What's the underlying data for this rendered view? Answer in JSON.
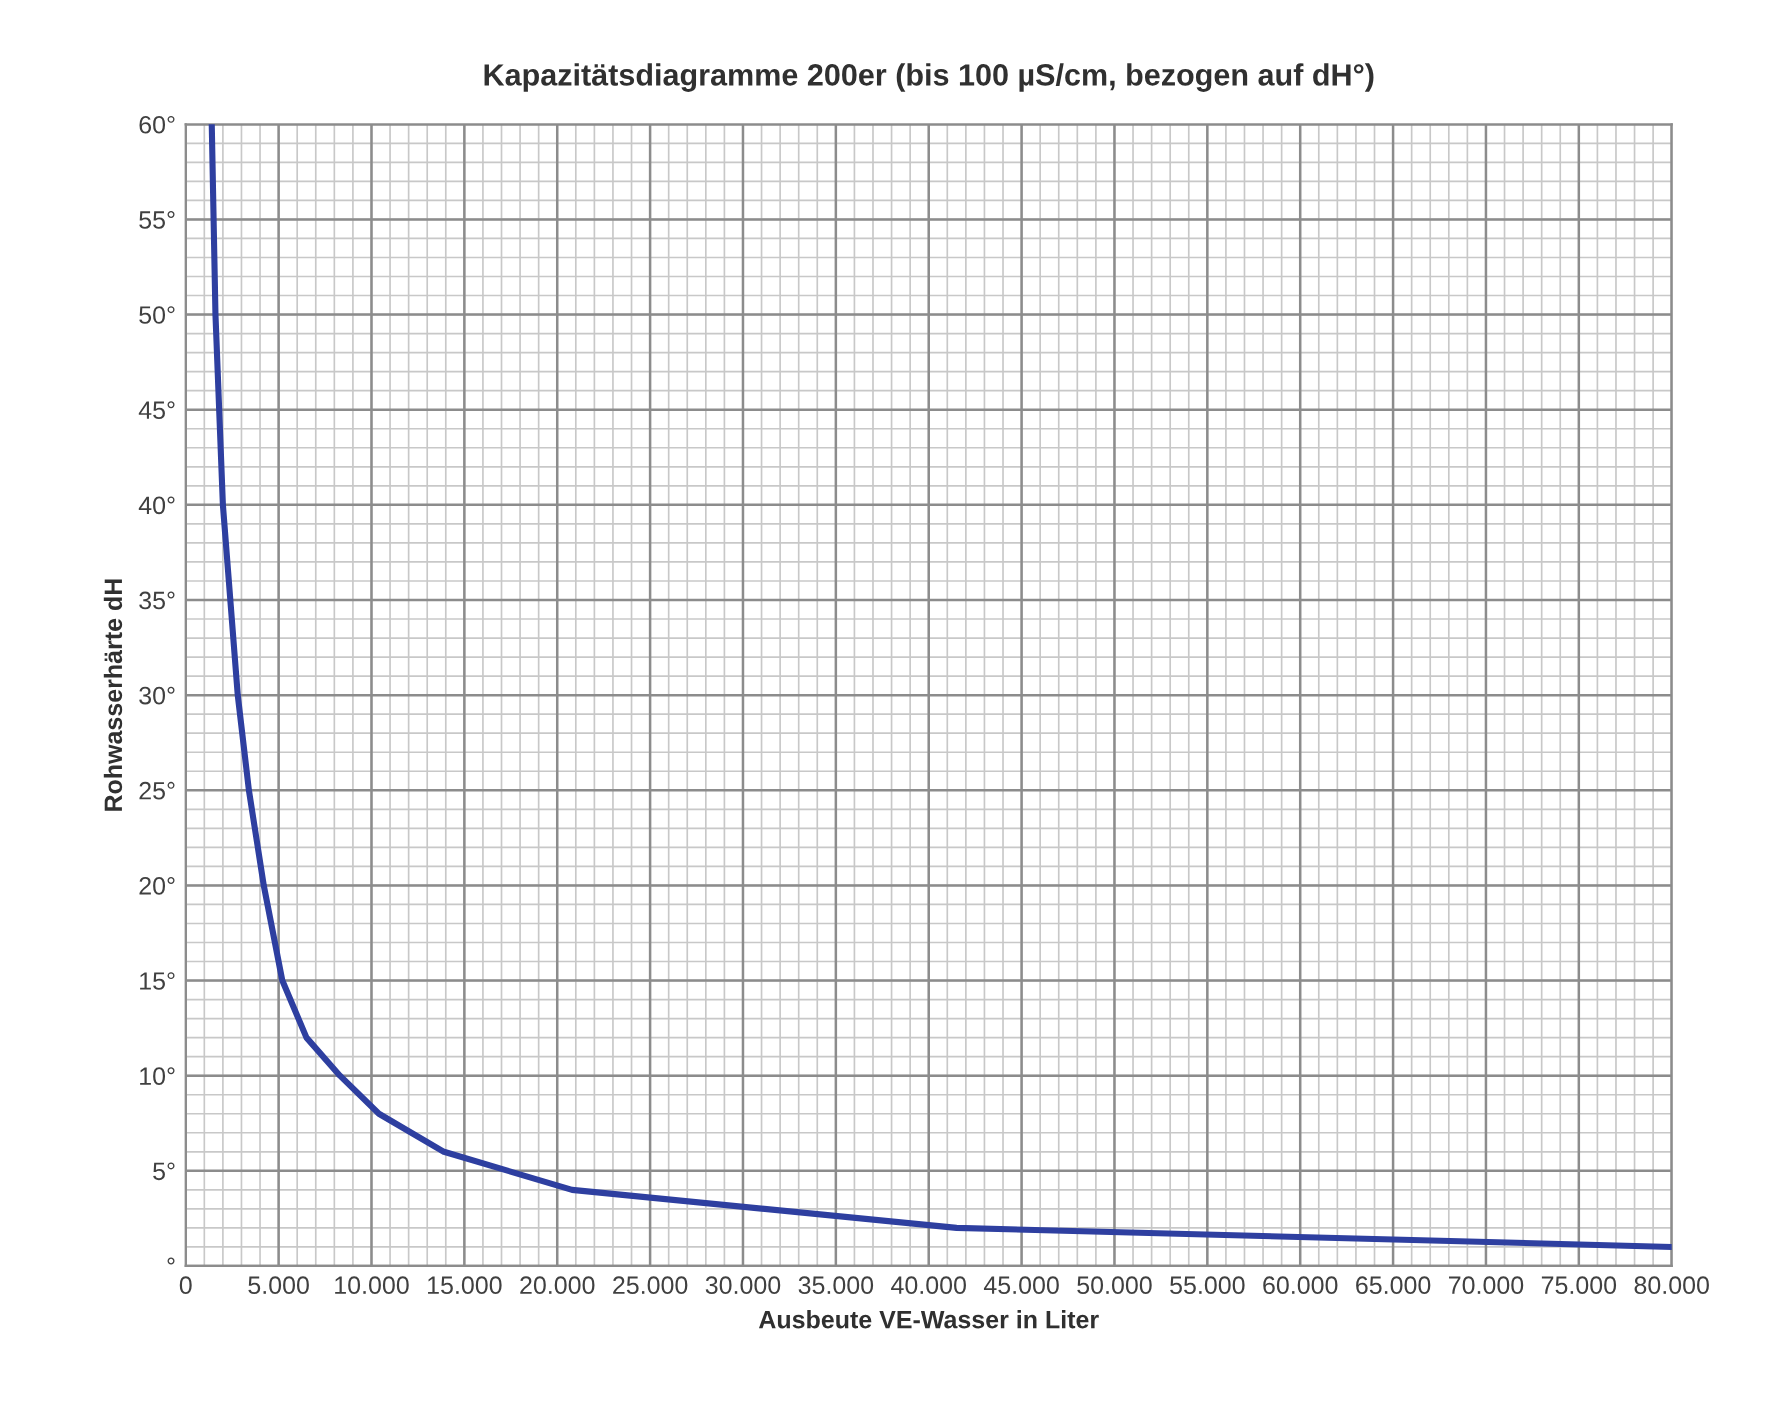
{
  "chart_data": {
    "type": "line",
    "title": "Kapazitätsdiagramme 200er (bis 100 µS/cm, bezogen auf dH°)",
    "xlabel": "Ausbeute VE-Wasser in Liter",
    "ylabel": "Rohwasserhärte dH",
    "x": [
      1400,
      1600,
      2000,
      2800,
      3400,
      4200,
      5200,
      6500,
      8300,
      10400,
      13900,
      20800,
      41500,
      80000
    ],
    "series": [
      {
        "color": "#2e3fa0",
        "values": [
          60,
          50,
          40,
          30,
          25,
          20,
          15,
          12,
          10,
          8,
          6,
          4,
          2,
          1
        ]
      }
    ],
    "xlim": [
      0,
      80000
    ],
    "ylim": [
      0,
      60
    ],
    "xticks": [
      0,
      {
        "value": 5000,
        "label": "5.000"
      },
      {
        "value": 10000,
        "label": "10.000"
      },
      {
        "value": 15000,
        "label": "15.000"
      },
      {
        "value": 20000,
        "label": "20.000"
      },
      {
        "value": 25000,
        "label": "25.000"
      },
      {
        "value": 30000,
        "label": "30.000"
      },
      {
        "value": 35000,
        "label": "35.000"
      },
      {
        "value": 40000,
        "label": "40.000"
      },
      {
        "value": 45000,
        "label": "45.000"
      },
      {
        "value": 50000,
        "label": "50.000"
      },
      {
        "value": 55000,
        "label": "55.000"
      },
      {
        "value": 60000,
        "label": "60.000"
      },
      {
        "value": 65000,
        "label": "65.000"
      },
      {
        "value": 70000,
        "label": "70.000"
      },
      {
        "value": 75000,
        "label": "75.000"
      },
      {
        "value": 80000,
        "label": "80.000"
      }
    ],
    "yticks": [
      {
        "value": 0,
        "label": "°"
      },
      {
        "value": 5,
        "label": "5°"
      },
      {
        "value": 10,
        "label": "10°"
      },
      {
        "value": 15,
        "label": "15°"
      },
      {
        "value": 20,
        "label": "20°"
      },
      {
        "value": 25,
        "label": "25°"
      },
      {
        "value": 30,
        "label": "30°"
      },
      {
        "value": 35,
        "label": "35°"
      },
      {
        "value": 40,
        "label": "40°"
      },
      {
        "value": 45,
        "label": "45°"
      },
      {
        "value": 50,
        "label": "50°"
      },
      {
        "value": 55,
        "label": "55°"
      },
      {
        "value": 60,
        "label": "60°"
      }
    ],
    "grid": true,
    "marker": "none",
    "line_style": "solid",
    "legend": false
  }
}
